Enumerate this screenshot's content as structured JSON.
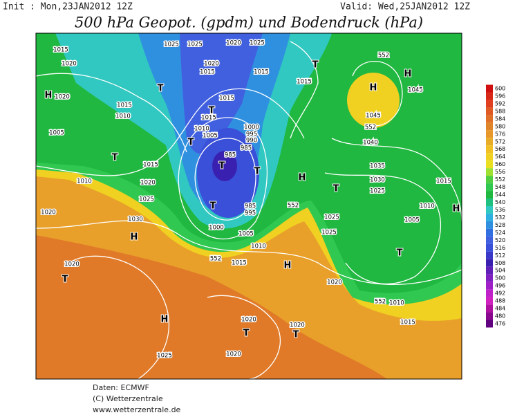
{
  "header": {
    "init": "Init : Mon,23JAN2012 12Z",
    "valid": "Valid: Wed,25JAN2012 12Z",
    "title": "500 hPa Geopot. (gpdm) und Bodendruck (hPa)"
  },
  "footer": [
    "Daten: ECMWF",
    "(C) Wetterzentrale",
    "www.wetterzentrale.de"
  ],
  "colorbar": {
    "levels": [
      600,
      596,
      592,
      588,
      584,
      580,
      576,
      572,
      568,
      564,
      560,
      556,
      552,
      548,
      544,
      540,
      536,
      532,
      528,
      524,
      520,
      516,
      512,
      508,
      504,
      500,
      496,
      492,
      488,
      484,
      480,
      476
    ],
    "colors": [
      "#d01010",
      "#d82818",
      "#e04020",
      "#e05a24",
      "#e07028",
      "#e0842a",
      "#e8982a",
      "#e8ac28",
      "#f0c024",
      "#f0d020",
      "#e8e020",
      "#a0e030",
      "#50d040",
      "#30c850",
      "#20b840",
      "#20c080",
      "#30c8c0",
      "#30b0e0",
      "#3090e0",
      "#3070e0",
      "#4060e0",
      "#3a50d8",
      "#3a38c8",
      "#3a20b0",
      "#6020b8",
      "#8020c0",
      "#a020c8",
      "#c020c8",
      "#d020c0",
      "#b010a0",
      "#8a0890",
      "#600080"
    ]
  },
  "map_labels": [
    "1015",
    "1025",
    "1025",
    "1020",
    "1025",
    "1020",
    "1020",
    "H",
    "T",
    "1015",
    "1015",
    "1015",
    "T",
    "1020",
    "1015",
    "1010",
    "T",
    "1015",
    "1015",
    "1005",
    "1010",
    "1005",
    "1000",
    "995",
    "990",
    "T",
    "1015",
    "T",
    "985",
    "985",
    "T",
    "T",
    "1020",
    "1010",
    "1025",
    "H",
    "T",
    "T",
    "985",
    "995",
    "1020",
    "1030",
    "H",
    "1000",
    "1005",
    "1010",
    "552",
    "552",
    "1015",
    "H",
    "1020",
    "T",
    "1020",
    "H",
    "1025",
    "1020",
    "T",
    "1020",
    "T",
    "1020",
    "1015",
    "552",
    "H",
    "H",
    "1045",
    "1045",
    "552",
    "1040",
    "1035",
    "1030",
    "1025",
    "1015",
    "1010",
    "1005",
    "H",
    "T",
    "1025",
    "1025",
    "552",
    "1010"
  ]
}
